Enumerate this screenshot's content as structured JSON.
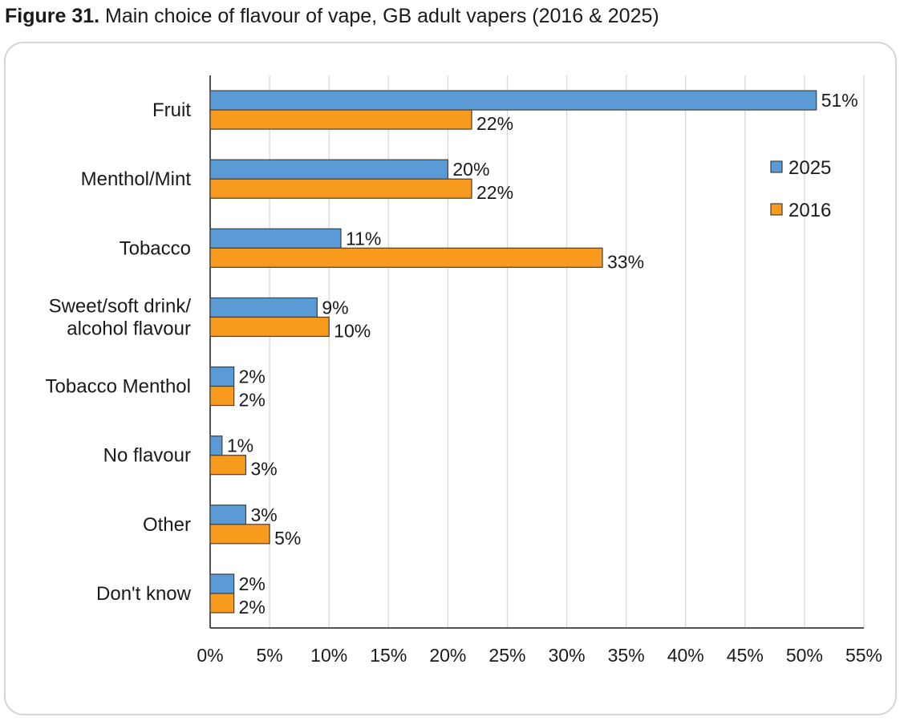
{
  "figure": {
    "number": "Figure 31.",
    "title": "Main choice of flavour of vape, GB adult vapers (2016 & 2025)"
  },
  "colors": {
    "2025": "#5b9bd5",
    "2016": "#f79a1e",
    "bar_stroke": "#404040",
    "grid": "#d9d9d9",
    "axis": "#1a1a1a"
  },
  "chart_data": {
    "type": "bar",
    "orientation": "horizontal",
    "title": "Main choice of flavour of vape, GB adult vapers (2016 & 2025)",
    "categories": [
      [
        "Fruit"
      ],
      [
        "Menthol/Mint"
      ],
      [
        "Tobacco"
      ],
      [
        "Sweet/soft drink/",
        "alcohol flavour"
      ],
      [
        "Tobacco Menthol"
      ],
      [
        "No flavour"
      ],
      [
        "Other"
      ],
      [
        "Don't know"
      ]
    ],
    "series": [
      {
        "name": "2025",
        "values": [
          51,
          20,
          11,
          9,
          2,
          1,
          3,
          2
        ],
        "labels": [
          "51%",
          "20%",
          "11%",
          "9%",
          "2%",
          "1%",
          "3%",
          "2%"
        ]
      },
      {
        "name": "2016",
        "values": [
          22,
          22,
          33,
          10,
          2,
          3,
          5,
          2
        ],
        "labels": [
          "22%",
          "22%",
          "33%",
          "10%",
          "2%",
          "3%",
          "5%",
          "2%"
        ]
      }
    ],
    "xlim": [
      0,
      55
    ],
    "xticks": [
      0,
      5,
      10,
      15,
      20,
      25,
      30,
      35,
      40,
      45,
      50,
      55
    ],
    "xtick_labels": [
      "0%",
      "5%",
      "10%",
      "15%",
      "20%",
      "25%",
      "30%",
      "35%",
      "40%",
      "45%",
      "50%",
      "55%"
    ],
    "xlabel": "",
    "ylabel": "",
    "grid": "vertical",
    "legend_position": "right"
  }
}
